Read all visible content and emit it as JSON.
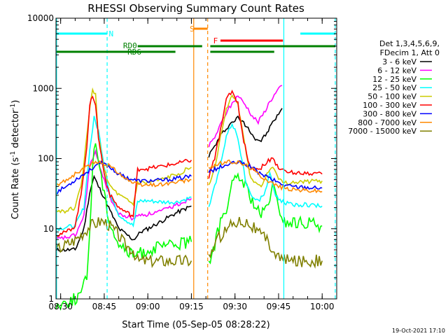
{
  "chart_data": {
    "type": "line",
    "title": "RHESSI Observing Summary Count Rates",
    "xlabel": "Start Time (05-Sep-05 08:28:22)",
    "ylabel_main": "Count Rate (s",
    "ylabel_sup1": "-1",
    "ylabel_mid": " detector",
    "ylabel_sup2": "-1",
    "ylabel_end": ")",
    "xlim_min": [
      508.4,
      605
    ],
    "ylim": [
      1,
      10000
    ],
    "y_scale": "log",
    "xticks": [
      {
        "v": 510,
        "label": "08:30"
      },
      {
        "v": 525,
        "label": "08:45"
      },
      {
        "v": 540,
        "label": "09:00"
      },
      {
        "v": 555,
        "label": "09:15"
      },
      {
        "v": 570,
        "label": "09:30"
      },
      {
        "v": 585,
        "label": "09:45"
      },
      {
        "v": 600,
        "label": "10:00"
      }
    ],
    "yticks": [
      {
        "v": 1,
        "label": "1"
      },
      {
        "v": 10,
        "label": "10"
      },
      {
        "v": 100,
        "label": "100"
      },
      {
        "v": 1000,
        "label": "1000"
      },
      {
        "v": 10000,
        "label": "10000"
      }
    ],
    "legend_header": [
      "Det 1,3,4,5,6,9,",
      "FDecim 1, Att 0"
    ],
    "legend_position": "right",
    "timestamp": "19-Oct-2021 17:10",
    "series": [
      {
        "name": "3 - 6 keV",
        "color": "#000000",
        "x": [
          508.4,
          515,
          518,
          520,
          521.5,
          523,
          525,
          527,
          530,
          535,
          536.5,
          537.5,
          540,
          545,
          550,
          555
        ],
        "y": [
          5,
          5,
          10,
          33,
          55,
          40,
          28,
          18,
          10,
          7,
          8,
          9,
          10,
          13,
          17,
          21
        ],
        "x2": [
          561,
          563,
          565,
          567,
          569,
          571,
          573,
          575,
          577,
          579,
          581,
          583,
          585,
          586.2
        ],
        "y2": [
          110,
          150,
          210,
          270,
          330,
          380,
          320,
          260,
          190,
          180,
          230,
          330,
          430,
          520
        ]
      },
      {
        "name": "6 - 12 keV",
        "color": "#ff00ff",
        "x": [
          508.4,
          515,
          518,
          520,
          522,
          523,
          525,
          527,
          530,
          535,
          536.5,
          537.5,
          540,
          545,
          550,
          555
        ],
        "y": [
          7,
          8,
          15,
          80,
          120,
          90,
          50,
          28,
          16,
          14,
          15,
          16,
          16,
          18,
          22,
          27
        ],
        "x2": [
          561,
          563,
          565,
          567,
          569,
          571,
          572,
          574,
          576,
          578,
          580,
          582,
          584,
          586.2
        ],
        "y2": [
          150,
          200,
          300,
          450,
          600,
          800,
          700,
          550,
          400,
          330,
          450,
          650,
          850,
          1100
        ]
      },
      {
        "name": "12 - 25 keV",
        "color": "#00ff00",
        "x": [
          508.4,
          512,
          515,
          517,
          519,
          520,
          521,
          522,
          523,
          525,
          527,
          530,
          535,
          536.5,
          537.5,
          540,
          545,
          550,
          555
        ],
        "y": [
          0.8,
          0.9,
          1,
          1.2,
          2,
          9,
          80,
          180,
          100,
          30,
          12,
          6,
          4,
          4.5,
          4.5,
          5,
          5.5,
          6,
          6.5
        ],
        "x2": [
          561,
          562,
          563,
          565,
          567,
          569,
          571,
          573,
          575,
          577,
          579,
          581,
          583,
          585,
          587,
          590,
          595,
          600
        ],
        "y2": [
          3.5,
          4,
          6,
          12,
          20,
          40,
          55,
          45,
          30,
          20,
          15,
          20,
          40,
          20,
          12,
          12,
          12,
          11
        ]
      },
      {
        "name": "25 - 50 keV",
        "color": "#00ffff",
        "x": [
          508.4,
          515,
          518,
          520,
          521.5,
          523,
          525,
          527,
          530,
          535,
          536.5,
          537.5,
          540,
          545,
          550,
          555
        ],
        "y": [
          10,
          11,
          20,
          130,
          380,
          250,
          80,
          30,
          16,
          11,
          24,
          25,
          25,
          24,
          24,
          28
        ],
        "x2": [
          561,
          563,
          565,
          567,
          569,
          571,
          573,
          574,
          576,
          578,
          580,
          582,
          584,
          586,
          588,
          590,
          595,
          600
        ],
        "y2": [
          20,
          40,
          80,
          200,
          320,
          200,
          70,
          40,
          30,
          25,
          30,
          60,
          30,
          25,
          23,
          22,
          22,
          21
        ]
      },
      {
        "name": "50 - 100 keV",
        "color": "#cccc00",
        "x": [
          508.4,
          512,
          515,
          517,
          519,
          520,
          521,
          522,
          523,
          525,
          527,
          530,
          535,
          536.5,
          537.5,
          540,
          545,
          550,
          555
        ],
        "y": [
          18,
          18,
          20,
          40,
          200,
          500,
          1000,
          800,
          200,
          70,
          40,
          30,
          22,
          45,
          45,
          45,
          50,
          60,
          75
        ],
        "x2": [
          561,
          563,
          565,
          567,
          569,
          571,
          573,
          575,
          577,
          579,
          581,
          583,
          585,
          587,
          590,
          595,
          600
        ],
        "y2": [
          40,
          70,
          200,
          500,
          800,
          600,
          200,
          60,
          45,
          40,
          60,
          80,
          50,
          45,
          46,
          47,
          48
        ]
      },
      {
        "name": "100 - 300 keV",
        "color": "#ff0000",
        "x": [
          508.4,
          512,
          515,
          517,
          519,
          520,
          521,
          522,
          523,
          525,
          527,
          530,
          535,
          536.5,
          537.5,
          540,
          545,
          550,
          555
        ],
        "y": [
          8,
          9,
          11,
          30,
          150,
          550,
          800,
          600,
          200,
          60,
          30,
          20,
          15,
          70,
          72,
          72,
          78,
          85,
          95
        ],
        "x2": [
          561,
          563,
          565,
          567,
          569,
          571,
          573,
          575,
          577,
          579,
          581,
          583,
          585,
          587,
          590,
          595,
          600
        ],
        "y2": [
          55,
          100,
          250,
          700,
          900,
          600,
          180,
          80,
          70,
          75,
          90,
          100,
          75,
          65,
          63,
          62,
          60
        ]
      },
      {
        "name": "300 - 800 keV",
        "color": "#0000ff",
        "x": [
          508.4,
          512,
          515,
          518,
          520,
          522,
          524,
          526,
          528,
          530,
          532,
          535,
          536.5,
          537.5,
          540,
          545,
          550,
          555
        ],
        "y": [
          33,
          40,
          50,
          60,
          68,
          80,
          85,
          80,
          70,
          60,
          55,
          50,
          48,
          48,
          48,
          49,
          52,
          56
        ],
        "x2": [
          561,
          563,
          565,
          567,
          569,
          571,
          573,
          575,
          577,
          579,
          581,
          583,
          585,
          587,
          590,
          595,
          600
        ],
        "y2": [
          65,
          70,
          75,
          80,
          85,
          88,
          85,
          78,
          68,
          60,
          55,
          50,
          45,
          42,
          40,
          39,
          38
        ]
      },
      {
        "name": "800 - 7000 keV",
        "color": "#ff8800",
        "x": [
          508.4,
          512,
          515,
          518,
          521,
          523,
          525,
          527,
          529,
          531,
          533,
          535,
          536.5,
          537.5,
          540,
          545,
          550,
          555
        ],
        "y": [
          40,
          50,
          60,
          72,
          85,
          88,
          85,
          78,
          68,
          58,
          50,
          45,
          42,
          42,
          42,
          43,
          46,
          50
        ],
        "x2": [
          561,
          563,
          565,
          567,
          569,
          571,
          573,
          575,
          577,
          579,
          581,
          583,
          585,
          587,
          590,
          595,
          600
        ],
        "y2": [
          75,
          80,
          85,
          88,
          90,
          88,
          82,
          75,
          65,
          56,
          50,
          44,
          40,
          38,
          36,
          35,
          34
        ]
      },
      {
        "name": "7000 - 15000 keV",
        "color": "#808000",
        "x": [
          508.4,
          512,
          515,
          518,
          520,
          522,
          524,
          526,
          528,
          530,
          532,
          535,
          536.5,
          537.5,
          540,
          545,
          550,
          555
        ],
        "y": [
          5,
          6,
          7,
          9,
          11,
          12,
          13,
          12,
          10,
          8,
          6,
          5,
          3.5,
          3.5,
          3.5,
          3.5,
          3.5,
          3.5
        ],
        "x2": [
          561,
          563,
          565,
          567,
          569,
          571,
          573,
          575,
          577,
          579,
          581,
          583,
          585,
          587,
          590,
          595,
          600
        ],
        "y2": [
          4,
          6,
          8,
          10,
          12,
          13,
          13,
          12,
          10,
          8,
          7,
          5,
          4,
          3.5,
          3.5,
          3.5,
          3.5
        ]
      }
    ],
    "annotations": [
      {
        "label": "N",
        "color": "#00ffff"
      },
      {
        "label": "S",
        "color": "#ff8800"
      },
      {
        "label": "F",
        "color": "#ff0000"
      },
      {
        "label": "RD0",
        "color": "#008000"
      },
      {
        "label": "RD6",
        "color": "#008000"
      }
    ]
  }
}
